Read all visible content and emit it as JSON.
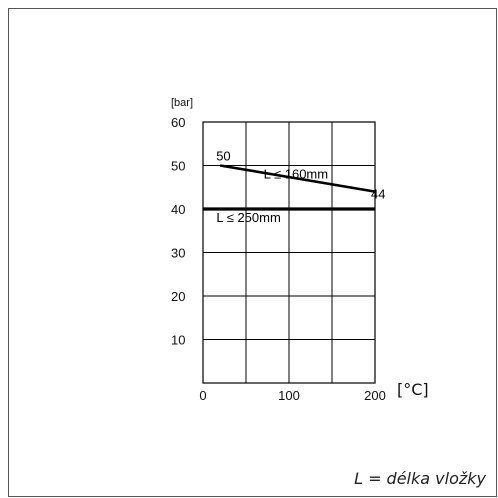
{
  "chart_data": {
    "type": "line",
    "x_unit_label": "[°C]",
    "y_unit_label": "[bar]",
    "xlim": [
      0,
      200
    ],
    "ylim": [
      0,
      60
    ],
    "x_ticks": [
      0,
      100,
      200
    ],
    "y_ticks": [
      10,
      20,
      30,
      40,
      50,
      60
    ],
    "grid": true,
    "series": [
      {
        "name": "L ≤ 160mm",
        "x": [
          20,
          200
        ],
        "y": [
          50,
          44
        ]
      },
      {
        "name": "L ≤ 250mm",
        "x": [
          0,
          200
        ],
        "y": [
          40,
          40
        ]
      }
    ],
    "annotations": [
      {
        "text": "50",
        "x": 20,
        "y": 50
      },
      {
        "text": "44",
        "x": 200,
        "y": 44
      }
    ]
  },
  "footnote": "L = délka vložky"
}
